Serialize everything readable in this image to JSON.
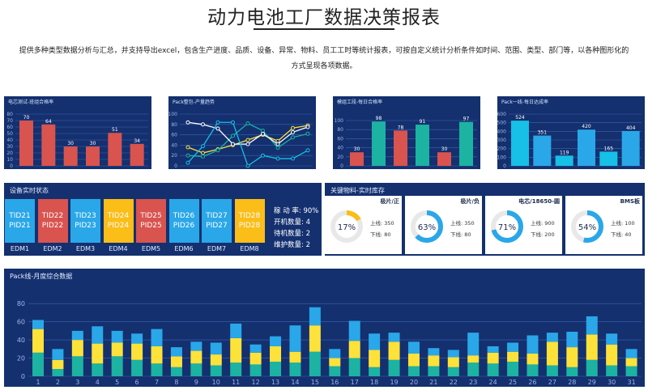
{
  "page": {
    "title": "动力电池工厂数据决策报表",
    "desc_line1": "提供多种类型数据分析与汇总，并支持导出excel，包含生产进度、品质、设备、异常、物料、员工工时等统计报表，可按自定义统计分析条件如时间、范围、类型、部门等，以各种图形化的",
    "desc_line2": "方式呈现各项数据。"
  },
  "colors": {
    "panel": "#14306f",
    "red": "#d9534f",
    "teal": "#1cb3a2",
    "blue": "#2aa7e8",
    "yellow": "#fde23a",
    "cyan": "#16c0e6"
  },
  "chart_data": [
    {
      "type": "bar",
      "title": "电芯测试-班组合格率",
      "yticks": [
        "0",
        "10",
        "20",
        "30",
        "40",
        "50",
        "60",
        "70",
        "80"
      ],
      "ylim": [
        0,
        80
      ],
      "values": [
        70,
        64,
        30,
        30,
        51,
        34
      ],
      "labels": [
        "70",
        "64",
        "30",
        "30",
        "51",
        "34"
      ]
    },
    {
      "type": "line",
      "title": "Pack整包-产量趋势",
      "yticks": [
        "0",
        "20",
        "40",
        "60",
        "80",
        "100"
      ],
      "ylim": [
        0,
        100
      ],
      "series": [
        {
          "name": "series-yellow",
          "values": [
            36,
            25,
            32,
            40,
            50,
            60,
            48,
            73,
            78
          ]
        },
        {
          "name": "series-teal",
          "values": [
            20,
            18,
            30,
            58,
            82,
            68,
            35,
            55,
            62
          ]
        },
        {
          "name": "series-white",
          "values": [
            84,
            80,
            72,
            42,
            42,
            62,
            42,
            65,
            75
          ]
        },
        {
          "name": "series-cyan",
          "values": [
            6,
            38,
            84,
            84,
            0,
            20,
            14,
            14,
            30
          ]
        }
      ]
    },
    {
      "type": "bar",
      "title": "模组工段-每日合格率",
      "yticks": [
        "0",
        "20",
        "40",
        "60",
        "80",
        "100"
      ],
      "ylim": [
        0,
        100
      ],
      "values": [
        30,
        98,
        78,
        91,
        30,
        97
      ],
      "labels": [
        "30",
        "98",
        "78",
        "91",
        "30",
        "97"
      ]
    },
    {
      "type": "bar",
      "title": "Pack一线-每日达成率",
      "yticks": [
        "0",
        "100",
        "200",
        "300",
        "400",
        "500",
        "600"
      ],
      "ylim": [
        0,
        600
      ],
      "values": [
        524,
        351,
        119,
        420,
        165,
        404
      ],
      "labels": [
        "524",
        "351",
        "119",
        "420",
        "165",
        "404"
      ]
    },
    {
      "type": "bar",
      "stacked": true,
      "title": "Pack线-月度综合数据",
      "categories": [
        "1",
        "2",
        "3",
        "4",
        "5",
        "6",
        "7",
        "8",
        "9",
        "10",
        "11",
        "12",
        "13",
        "14",
        "15",
        "16",
        "17",
        "18",
        "19",
        "20",
        "21",
        "22",
        "23",
        "24",
        "25",
        "26",
        "27",
        "28",
        "29",
        "30",
        "31"
      ],
      "yticks": [
        "0",
        "20",
        "40",
        "60",
        "80"
      ],
      "ylim": [
        0,
        90
      ],
      "series": [
        {
          "name": "teal",
          "values": [
            26,
            8,
            22,
            14,
            22,
            18,
            14,
            10,
            14,
            12,
            15,
            13,
            16,
            15,
            27,
            11,
            20,
            10,
            18,
            11,
            11,
            10,
            15,
            14,
            16,
            13,
            12,
            10,
            18,
            12,
            11
          ]
        },
        {
          "name": "yellow",
          "values": [
            26,
            10,
            18,
            22,
            15,
            18,
            19,
            12,
            14,
            12,
            27,
            13,
            17,
            12,
            29,
            9,
            19,
            19,
            20,
            14,
            12,
            11,
            8,
            12,
            11,
            12,
            26,
            22,
            28,
            23,
            9
          ]
        },
        {
          "name": "blue",
          "values": [
            10,
            12,
            10,
            19,
            13,
            11,
            19,
            10,
            10,
            13,
            16,
            9,
            11,
            29,
            20,
            10,
            22,
            18,
            10,
            13,
            8,
            8,
            25,
            7,
            10,
            20,
            10,
            17,
            20,
            12,
            10
          ]
        }
      ]
    }
  ],
  "equipment": {
    "title": "设备实时状态",
    "devices": [
      {
        "line1": "TID21",
        "line2": "PID21",
        "name": "EDM1"
      },
      {
        "line1": "TID22",
        "line2": "PID22",
        "name": "EDM2"
      },
      {
        "line1": "TID23",
        "line2": "PID23",
        "name": "EDM3"
      },
      {
        "line1": "TID24",
        "line2": "PID24",
        "name": "EDM4"
      },
      {
        "line1": "TID25",
        "line2": "PID25",
        "name": "EDM5"
      },
      {
        "line1": "TID26",
        "line2": "PID26",
        "name": "EDM6"
      },
      {
        "line1": "TID27",
        "line2": "PID27",
        "name": "EDM7"
      },
      {
        "line1": "TID28",
        "line2": "PID28",
        "name": "EDM8"
      }
    ],
    "device_colors": [
      "#2aa7e8",
      "#d9534f",
      "#2aa7e8",
      "#fbbd18",
      "#d9534f",
      "#2aa7e8",
      "#2aa7e8",
      "#fbbd18"
    ],
    "stats": [
      "稼 动 率: 90%",
      "开机数量: 4",
      "待机数量: 2",
      "维护数量: 2"
    ]
  },
  "inventory": {
    "title": "关键物料-实时库存",
    "cards": [
      {
        "name": "极片/正",
        "percent": 0.17,
        "percent_label": "17%",
        "upper": "上线:  350",
        "lower": "下线:  80"
      },
      {
        "name": "极片/负",
        "percent": 0.63,
        "percent_label": "63%",
        "upper": "上线:  350",
        "lower": "下线:  80"
      },
      {
        "name": "电芯/18650-圆",
        "percent": 0.71,
        "percent_label": "71%",
        "upper": "上线:  900",
        "lower": "下线:  200"
      },
      {
        "name": "BMS板",
        "percent": 0.54,
        "percent_label": "54%",
        "upper": "上线:  100",
        "lower": "下线:  40"
      }
    ]
  }
}
